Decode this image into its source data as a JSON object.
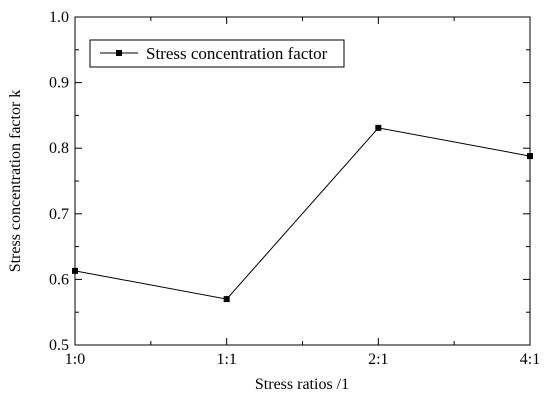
{
  "chart_data": {
    "type": "line",
    "title": "",
    "xlabel": "Stress ratios /1",
    "ylabel": "Stress concentration factor k",
    "categories": [
      "1:0",
      "1:1",
      "2:1",
      "4:1"
    ],
    "series": [
      {
        "name": "Stress concentration factor",
        "values": [
          0.613,
          0.57,
          0.831,
          0.788
        ]
      }
    ],
    "ylim": [
      0.5,
      1.0
    ],
    "yticks": [
      "0.5",
      "0.6",
      "0.7",
      "0.8",
      "0.9",
      "1.0"
    ],
    "grid": false,
    "legend": "top-left",
    "colors": {
      "line": "#000000",
      "marker": "#000000",
      "axis": "#000000"
    }
  }
}
